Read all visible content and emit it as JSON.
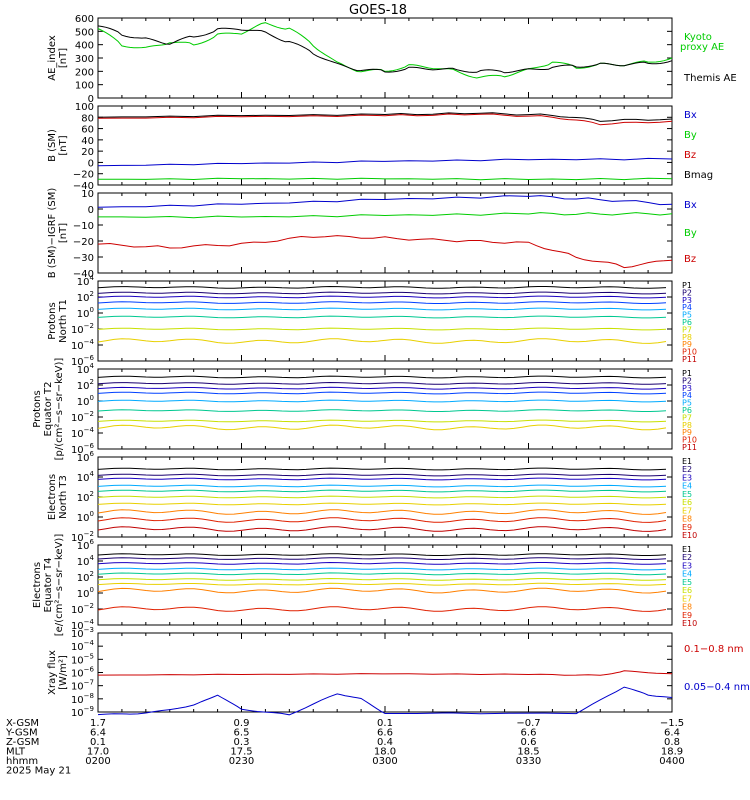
{
  "title": "GOES-18",
  "date_label": "2025 May 21",
  "panels": [
    {
      "id": "ae",
      "ylabel": [
        "AE_index",
        "[nT]"
      ],
      "yticks": [
        "600",
        "500",
        "400",
        "300",
        "200",
        "100",
        "0"
      ],
      "legend": [
        {
          "text": "Kyoto",
          "color": "#00cc00"
        },
        {
          "text": "proxy AE",
          "color": "#00cc00"
        },
        {
          "text": "Themis AE",
          "color": "#000000"
        }
      ]
    },
    {
      "id": "bsm",
      "ylabel": [
        "B (SM)",
        "[nT]"
      ],
      "yticks": [
        "100",
        "80",
        "60",
        "40",
        "20",
        "0",
        "−20",
        "−40"
      ],
      "legend": [
        {
          "text": "Bx",
          "color": "#0000cc"
        },
        {
          "text": "By",
          "color": "#00cc00"
        },
        {
          "text": "Bz",
          "color": "#cc0000"
        },
        {
          "text": "Bmag",
          "color": "#000000"
        }
      ]
    },
    {
      "id": "bigrf",
      "ylabel": [
        "B (SM)−IGRF (SM)",
        "[nT]"
      ],
      "yticks": [
        "10",
        "0",
        "−10",
        "−20",
        "−30",
        "−40"
      ],
      "legend": [
        {
          "text": "Bx",
          "color": "#0000cc"
        },
        {
          "text": "By",
          "color": "#00cc00"
        },
        {
          "text": "Bz",
          "color": "#cc0000"
        }
      ]
    },
    {
      "id": "pnorth",
      "ylabel": [
        "Protons",
        "North T1"
      ],
      "yticks": [
        "4",
        "2",
        "0",
        "−2",
        "−4",
        "−6"
      ],
      "legend": [
        {
          "text": "P1",
          "color": "#000000"
        },
        {
          "text": "P2",
          "color": "#1a0070"
        },
        {
          "text": "P3",
          "color": "#1a00c0"
        },
        {
          "text": "P4",
          "color": "#0040ff"
        },
        {
          "text": "P5",
          "color": "#00aaff"
        },
        {
          "text": "P6",
          "color": "#00c890"
        },
        {
          "text": "P7",
          "color": "#c8e000"
        },
        {
          "text": "P8",
          "color": "#e8d000"
        },
        {
          "text": "P9",
          "color": "#ff8000"
        },
        {
          "text": "P10",
          "color": "#e02000"
        },
        {
          "text": "P11",
          "color": "#c00000"
        }
      ]
    },
    {
      "id": "pequator",
      "ylabel": [
        "Protons",
        "Equator T2",
        "[p/(cm²−s−sr−keV)]"
      ],
      "yticks": [
        "4",
        "2",
        "0",
        "−2",
        "−4",
        "−6"
      ],
      "legend": [
        {
          "text": "P1",
          "color": "#000000"
        },
        {
          "text": "P2",
          "color": "#1a0070"
        },
        {
          "text": "P3",
          "color": "#1a00c0"
        },
        {
          "text": "P4",
          "color": "#0040ff"
        },
        {
          "text": "P5",
          "color": "#00aaff"
        },
        {
          "text": "P6",
          "color": "#00c890"
        },
        {
          "text": "P7",
          "color": "#c8e000"
        },
        {
          "text": "P8",
          "color": "#e8d000"
        },
        {
          "text": "P9",
          "color": "#ff8000"
        },
        {
          "text": "P10",
          "color": "#e02000"
        },
        {
          "text": "P11",
          "color": "#c00000"
        }
      ]
    },
    {
      "id": "enorth",
      "ylabel": [
        "Electrons",
        "North T3"
      ],
      "yticks": [
        "6",
        "4",
        "2",
        "0",
        "−2"
      ],
      "legend": [
        {
          "text": "E1",
          "color": "#000000"
        },
        {
          "text": "E2",
          "color": "#1a0070"
        },
        {
          "text": "E3",
          "color": "#1a00c0"
        },
        {
          "text": "E4",
          "color": "#00aaff"
        },
        {
          "text": "E5",
          "color": "#00c890"
        },
        {
          "text": "E6",
          "color": "#c8e000"
        },
        {
          "text": "E7",
          "color": "#e8d000"
        },
        {
          "text": "E8",
          "color": "#ff8000"
        },
        {
          "text": "E9",
          "color": "#e02000"
        },
        {
          "text": "E10",
          "color": "#c00000"
        }
      ]
    },
    {
      "id": "eequator",
      "ylabel": [
        "Electrons",
        "Equator T4",
        "[e/(cm²−s−sr−keV)]"
      ],
      "yticks": [
        "6",
        "4",
        "2",
        "0",
        "−2",
        "−4"
      ],
      "legend": [
        {
          "text": "E1",
          "color": "#000000"
        },
        {
          "text": "E2",
          "color": "#1a0070"
        },
        {
          "text": "E3",
          "color": "#1a00c0"
        },
        {
          "text": "E4",
          "color": "#00aaff"
        },
        {
          "text": "E5",
          "color": "#00c890"
        },
        {
          "text": "E6",
          "color": "#c8e000"
        },
        {
          "text": "E7",
          "color": "#e8d000"
        },
        {
          "text": "E8",
          "color": "#ff8000"
        },
        {
          "text": "E9",
          "color": "#e02000"
        },
        {
          "text": "E10",
          "color": "#c00000"
        }
      ]
    },
    {
      "id": "xray",
      "ylabel": [
        "Xray flux",
        "[W/m²]"
      ],
      "yticks": [
        "−3",
        "−4",
        "−5",
        "−6",
        "−7",
        "−8",
        "−9"
      ],
      "legend": [
        {
          "text": "0.1−0.8 nm",
          "color": "#cc0000"
        },
        {
          "text": "0.05−0.4 nm",
          "color": "#0000cc"
        }
      ]
    }
  ],
  "footer": {
    "row_labels": [
      "X-GSM",
      "Y-GSM",
      "Z-GSM",
      "MLT",
      "hhmm"
    ],
    "columns": [
      [
        "1.7",
        "6.4",
        "0.1",
        "17.0",
        "0200"
      ],
      [
        "0.9",
        "6.5",
        "0.3",
        "17.5",
        "0230"
      ],
      [
        "0.1",
        "6.6",
        "0.4",
        "18.0",
        "0300"
      ],
      [
        "−0.7",
        "6.6",
        "0.6",
        "18.5",
        "0330"
      ],
      [
        "−1.5",
        "6.4",
        "0.8",
        "18.9",
        "0400"
      ]
    ]
  },
  "chart_data": {
    "type": "line",
    "title": "GOES-18",
    "x_axis": [
      "0200",
      "0230",
      "0300",
      "0330",
      "0400"
    ],
    "xlim": [
      "0200",
      "0400"
    ],
    "panels": [
      {
        "ylabel": "AE_index [nT]",
        "ylim": [
          0,
          600
        ],
        "series": [
          {
            "name": "Kyoto proxy AE",
            "color": "#00cc00",
            "x": [
              "0200",
              "0205",
              "0210",
              "0215",
              "0220",
              "0225",
              "0230",
              "0235",
              "0240",
              "0245",
              "0250",
              "0255",
              "0300",
              "0305",
              "0310",
              "0315",
              "0320",
              "0325",
              "0330",
              "0335",
              "0340",
              "0345",
              "0350",
              "0355",
              "0400"
            ],
            "y": [
              520,
              400,
              370,
              420,
              400,
              470,
              490,
              560,
              520,
              400,
              260,
              200,
              205,
              240,
              230,
              200,
              150,
              170,
              210,
              270,
              230,
              250,
              250,
              270,
              300
            ]
          },
          {
            "name": "Themis AE",
            "color": "#000000",
            "x": [
              "0200",
              "0205",
              "0210",
              "0215",
              "0220",
              "0225",
              "0230",
              "0235",
              "0240",
              "0245",
              "0250",
              "0255",
              "0300",
              "0305",
              "0310",
              "0315",
              "0320",
              "0325",
              "0330",
              "0335",
              "0340",
              "0345",
              "0350",
              "0355",
              "0400"
            ],
            "y": [
              540,
              480,
              440,
              410,
              460,
              510,
              520,
              490,
              420,
              340,
              250,
              210,
              200,
              220,
              220,
              210,
              200,
              200,
              210,
              230,
              240,
              250,
              250,
              260,
              280
            ]
          }
        ]
      },
      {
        "ylabel": "B (SM) [nT]",
        "ylim": [
          -40,
          100
        ],
        "series": [
          {
            "name": "Bmag",
            "color": "#000000",
            "x": [
              "0200",
              "0230",
              "0300",
              "0320",
              "0335",
              "0345",
              "0400"
            ],
            "y": [
              80,
              83,
              85,
              87,
              84,
              74,
              77
            ]
          },
          {
            "name": "Bz",
            "color": "#cc0000",
            "x": [
              "0200",
              "0230",
              "0300",
              "0320",
              "0335",
              "0345",
              "0400"
            ],
            "y": [
              78,
              81,
              83,
              85,
              81,
              68,
              73
            ]
          },
          {
            "name": "Bx",
            "color": "#0000cc",
            "x": [
              "0200",
              "0230",
              "0300",
              "0330",
              "0400"
            ],
            "y": [
              -6,
              -2,
              2,
              5,
              6
            ]
          },
          {
            "name": "By",
            "color": "#00cc00",
            "x": [
              "0200",
              "0230",
              "0300",
              "0330",
              "0400"
            ],
            "y": [
              -30,
              -29,
              -29,
              -30,
              -29
            ]
          }
        ]
      },
      {
        "ylabel": "B (SM)-IGRF (SM) [nT]",
        "ylim": [
          -40,
          10
        ],
        "series": [
          {
            "name": "Bx",
            "color": "#0000cc",
            "x": [
              "0200",
              "0230",
              "0300",
              "0330",
              "0345",
              "0400"
            ],
            "y": [
              1,
              3,
              6,
              8,
              6,
              3
            ]
          },
          {
            "name": "By",
            "color": "#00cc00",
            "x": [
              "0200",
              "0230",
              "0300",
              "0330",
              "0345",
              "0400"
            ],
            "y": [
              -5,
              -5,
              -4,
              -3,
              -3,
              -3
            ]
          },
          {
            "name": "Bz",
            "color": "#cc0000",
            "x": [
              "0200",
              "0215",
              "0230",
              "0245",
              "0300",
              "0315",
              "0330",
              "0340",
              "0350",
              "0400"
            ],
            "y": [
              -22,
              -24,
              -22,
              -17,
              -18,
              -20,
              -21,
              -30,
              -36,
              -32
            ]
          }
        ]
      },
      {
        "ylabel": "Protons North T1 (log10)",
        "ylim": [
          -6,
          4
        ],
        "series": [
          {
            "name": "P1",
            "values": [
              3.2
            ]
          },
          {
            "name": "P2",
            "values": [
              2.5
            ]
          },
          {
            "name": "P3",
            "values": [
              2.0
            ]
          },
          {
            "name": "P4",
            "values": [
              1.3
            ]
          },
          {
            "name": "P5",
            "values": [
              0.5
            ]
          },
          {
            "name": "P6",
            "values": [
              -0.5
            ]
          },
          {
            "name": "P7",
            "values": [
              -2.0
            ]
          },
          {
            "name": "P8",
            "values": [
              -3.5
            ]
          }
        ]
      },
      {
        "ylabel": "Protons Equator T2 [p/(cm2-s-sr-keV)] (log10)",
        "ylim": [
          -6,
          4
        ],
        "series": [
          {
            "name": "P1",
            "values": [
              3.0
            ]
          },
          {
            "name": "P2",
            "values": [
              2.2
            ]
          },
          {
            "name": "P3",
            "values": [
              1.6
            ]
          },
          {
            "name": "P4",
            "values": [
              1.0
            ]
          },
          {
            "name": "P5",
            "values": [
              0.0
            ]
          },
          {
            "name": "P6",
            "values": [
              -1.2
            ]
          },
          {
            "name": "P7",
            "values": [
              -2.5
            ]
          },
          {
            "name": "P8",
            "values": [
              -3.3
            ]
          }
        ]
      },
      {
        "ylabel": "Electrons North T3 (log10)",
        "ylim": [
          -2,
          6
        ],
        "series": [
          {
            "name": "E1",
            "values": [
              4.8
            ]
          },
          {
            "name": "E2",
            "values": [
              4.2
            ]
          },
          {
            "name": "E3",
            "values": [
              3.8
            ]
          },
          {
            "name": "E4",
            "values": [
              3.1
            ]
          },
          {
            "name": "E5",
            "values": [
              2.6
            ]
          },
          {
            "name": "E6",
            "values": [
              2.0
            ]
          },
          {
            "name": "E7",
            "values": [
              1.3
            ]
          },
          {
            "name": "E8",
            "values": [
              0.5
            ]
          },
          {
            "name": "E9",
            "values": [
              -0.3
            ]
          },
          {
            "name": "E10",
            "values": [
              -1.2
            ]
          }
        ]
      },
      {
        "ylabel": "Electrons Equator T4 [e/(cm2-s-sr-keV)] (log10)",
        "ylim": [
          -4,
          6
        ],
        "series": [
          {
            "name": "E1",
            "values": [
              4.8
            ]
          },
          {
            "name": "E2",
            "values": [
              4.3
            ]
          },
          {
            "name": "E3",
            "values": [
              3.7
            ]
          },
          {
            "name": "E4",
            "values": [
              3.0
            ]
          },
          {
            "name": "E5",
            "values": [
              2.4
            ]
          },
          {
            "name": "E6",
            "values": [
              1.7
            ]
          },
          {
            "name": "E7",
            "values": [
              1.1
            ]
          },
          {
            "name": "E8",
            "values": [
              0.3
            ]
          },
          {
            "name": "E9",
            "values": [
              -2.0
            ]
          }
        ]
      },
      {
        "ylabel": "Xray flux [W/m2] (log10)",
        "ylim": [
          -9,
          -3
        ],
        "series": [
          {
            "name": "0.1-0.8 nm",
            "color": "#cc0000",
            "x": [
              "0200",
              "0230",
              "0300",
              "0330",
              "0345",
              "0350",
              "0400"
            ],
            "y": [
              -6.2,
              -6.15,
              -6.1,
              -6.15,
              -6.2,
              -5.9,
              -6.1
            ]
          },
          {
            "name": "0.05-0.4 nm",
            "color": "#0000cc",
            "x": [
              "0200",
              "0210",
              "0220",
              "0225",
              "0230",
              "0240",
              "0250",
              "0255",
              "0300",
              "0340",
              "0350",
              "0355",
              "0400"
            ],
            "y": [
              -9.2,
              -9.1,
              -8.5,
              -7.7,
              -8.8,
              -9.2,
              -7.6,
              -8.0,
              -9.1,
              -9.1,
              -7.1,
              -7.7,
              -7.9
            ]
          }
        ]
      }
    ]
  }
}
